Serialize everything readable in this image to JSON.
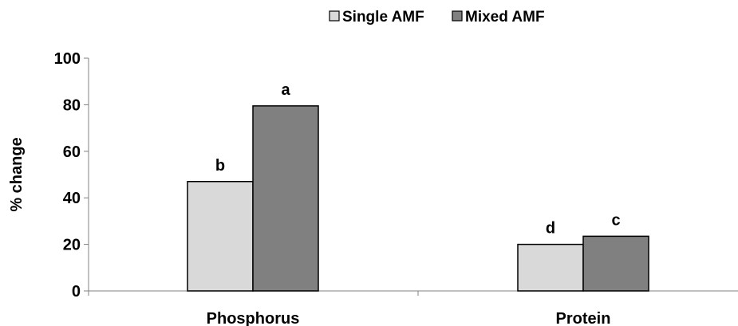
{
  "chart_data": {
    "type": "bar",
    "title": "",
    "xlabel": "",
    "ylabel": "% change",
    "ylim": [
      0,
      100
    ],
    "yticks": [
      0,
      20,
      40,
      60,
      80,
      100
    ],
    "grid": false,
    "legend_position": "top-center",
    "categories": [
      "Phosphorus",
      "Protein"
    ],
    "series": [
      {
        "name": "Single AMF",
        "color": "#d9d9d9",
        "values": [
          47,
          20
        ],
        "labels": [
          "b",
          "d"
        ]
      },
      {
        "name": "Mixed AMF",
        "color": "#808080",
        "values": [
          79.5,
          23.5
        ],
        "labels": [
          "a",
          "c"
        ]
      }
    ]
  }
}
